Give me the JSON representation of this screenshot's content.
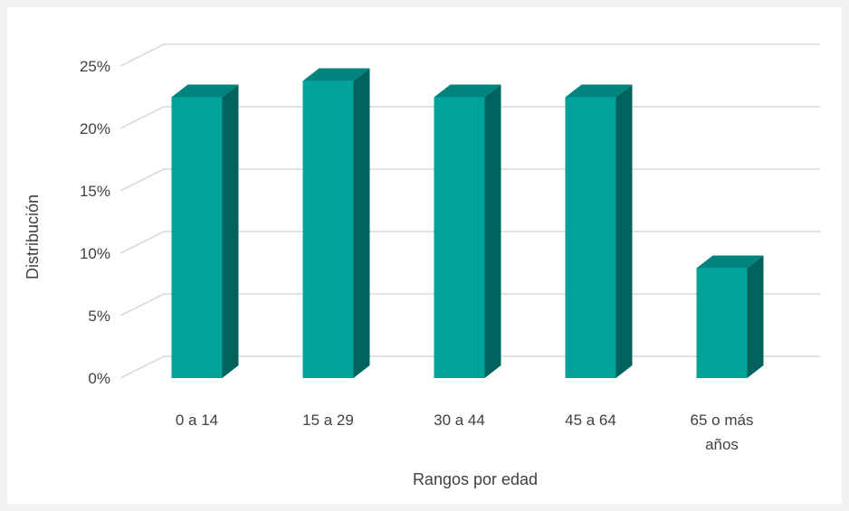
{
  "chart_data": {
    "type": "bar",
    "style": "3d-column",
    "title": "",
    "xlabel": "Rangos por edad",
    "ylabel": "Distribución",
    "categories": [
      [
        "0 a 14"
      ],
      [
        "15 a 29"
      ],
      [
        "30 a 44"
      ],
      [
        "45 a 64"
      ],
      [
        "65 o más",
        "años"
      ]
    ],
    "values": [
      0.225,
      0.238,
      0.225,
      0.225,
      0.088
    ],
    "ylim": [
      0,
      0.25
    ],
    "yticks": [
      {
        "value": 0,
        "label": "0%"
      },
      {
        "value": 0.05,
        "label": "5%"
      },
      {
        "value": 0.1,
        "label": "10%"
      },
      {
        "value": 0.15,
        "label": "15%"
      },
      {
        "value": 0.2,
        "label": "20%"
      },
      {
        "value": 0.25,
        "label": "25%"
      }
    ],
    "grid": true,
    "legend": "none",
    "colors": {
      "front": "#00a39a",
      "side": "#00625d",
      "top": "#00857e",
      "grid": "#d9d9d9",
      "text": "#404040"
    }
  }
}
